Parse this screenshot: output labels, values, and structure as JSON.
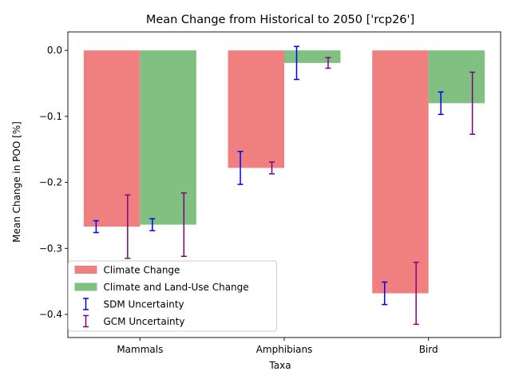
{
  "chart_data": {
    "type": "bar",
    "title": "Mean Change from Historical to 2050 ['rcp26']",
    "xlabel": "Taxa",
    "ylabel": "Mean Change in POO [%]",
    "categories": [
      "Mammals",
      "Amphibians",
      "Bird"
    ],
    "ylim": [
      -0.435,
      0.028
    ],
    "yticks": [
      0.0,
      -0.1,
      -0.2,
      -0.3,
      -0.4
    ],
    "ytick_labels": [
      "0.0",
      "−0.1",
      "−0.2",
      "−0.3",
      "−0.4"
    ],
    "grid": false,
    "legend_position": "lower-left",
    "series": [
      {
        "name": "Climate Change",
        "color": "#f08080",
        "values": [
          -0.267,
          -0.178,
          -0.368
        ],
        "sdm_error": [
          0.009,
          0.025,
          0.017
        ],
        "gcm_error": [
          0.048,
          0.009,
          0.047
        ]
      },
      {
        "name": "Climate and Land-Use Change",
        "color": "#80c080",
        "values": [
          -0.264,
          -0.019,
          -0.08
        ],
        "sdm_error": [
          0.009,
          0.025,
          0.017
        ],
        "gcm_error": [
          0.048,
          0.008,
          0.047
        ]
      }
    ],
    "error_series": [
      {
        "name": "SDM Uncertainty",
        "color": "#0000ff"
      },
      {
        "name": "GCM Uncertainty",
        "color": "#800080"
      }
    ]
  }
}
